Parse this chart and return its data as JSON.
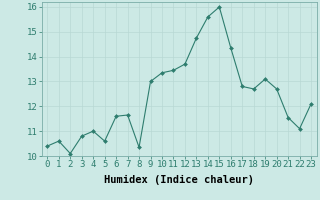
{
  "x": [
    0,
    1,
    2,
    3,
    4,
    5,
    6,
    7,
    8,
    9,
    10,
    11,
    12,
    13,
    14,
    15,
    16,
    17,
    18,
    19,
    20,
    21,
    22,
    23
  ],
  "y": [
    10.4,
    10.6,
    10.1,
    10.8,
    11.0,
    10.6,
    11.6,
    11.65,
    10.35,
    13.0,
    13.35,
    13.45,
    13.7,
    14.75,
    15.6,
    16.0,
    14.35,
    12.8,
    12.7,
    13.1,
    12.7,
    11.55,
    11.1,
    12.1
  ],
  "xlabel": "Humidex (Indice chaleur)",
  "xlim": [
    -0.5,
    23.5
  ],
  "ylim": [
    10,
    16.2
  ],
  "yticks": [
    10,
    11,
    12,
    13,
    14,
    15,
    16
  ],
  "xticks": [
    0,
    1,
    2,
    3,
    4,
    5,
    6,
    7,
    8,
    9,
    10,
    11,
    12,
    13,
    14,
    15,
    16,
    17,
    18,
    19,
    20,
    21,
    22,
    23
  ],
  "line_color": "#2e7d6e",
  "marker_color": "#2e7d6e",
  "bg_color": "#cce9e5",
  "grid_color_major": "#b8d8d4",
  "grid_color_minor": "#b8d8d4",
  "xlabel_fontsize": 7.5,
  "tick_fontsize": 6.5
}
